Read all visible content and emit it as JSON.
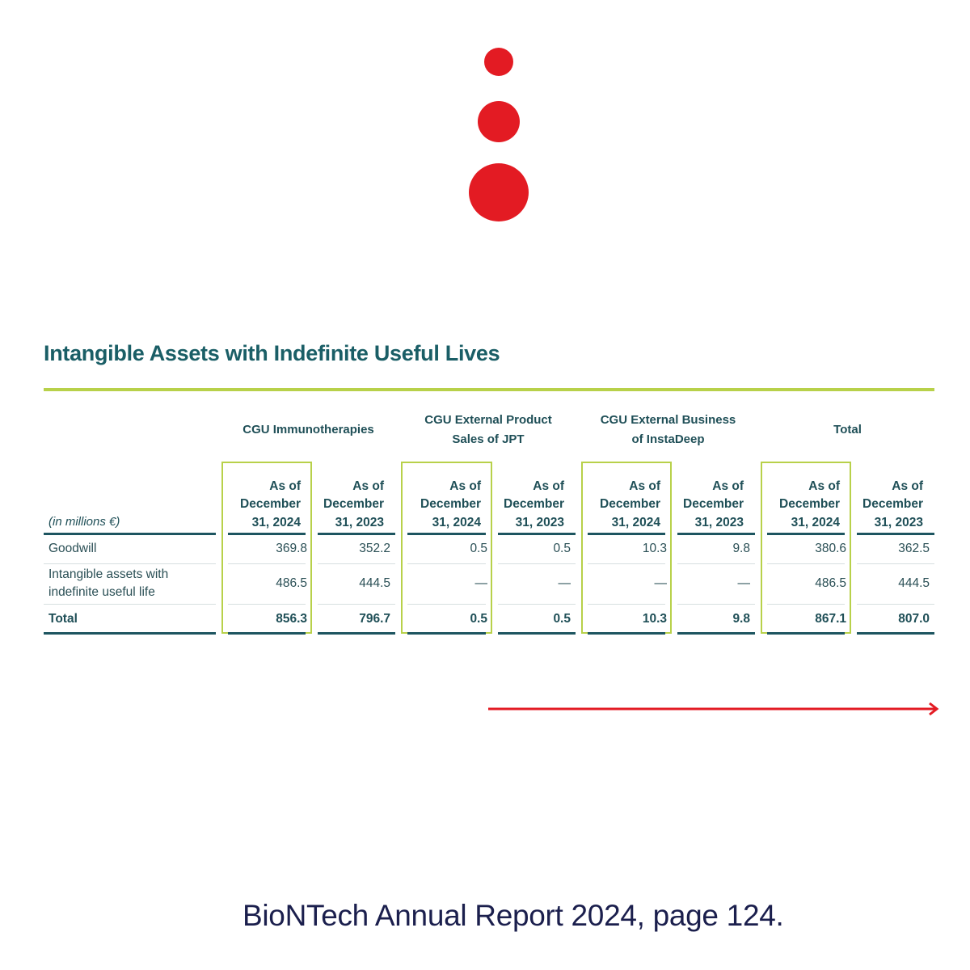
{
  "title": "Intangible Assets with Indefinite Useful Lives",
  "table": {
    "groups": [
      "CGU Immunotherapies",
      "CGU External Product Sales of JPT",
      "CGU External Business of InstaDeep",
      "Total"
    ],
    "unit": "(in millions €)",
    "columns": [
      "As of December 31, 2024",
      "As of December 31, 2023",
      "As of December 31, 2024",
      "As of December 31, 2023",
      "As of December 31, 2024",
      "As of December 31, 2023",
      "As of December 31, 2024",
      "As of December 31, 2023"
    ],
    "rows": [
      {
        "label": "Goodwill",
        "values": [
          "369.8",
          "352.2",
          "0.5",
          "0.5",
          "10.3",
          "9.8",
          "380.6",
          "362.5"
        ]
      },
      {
        "label": "Intangible assets with indefinite useful life",
        "values": [
          "486.5",
          "444.5",
          "—",
          "—",
          "—",
          "—",
          "486.5",
          "444.5"
        ]
      },
      {
        "label": "Total",
        "values": [
          "856.3",
          "796.7",
          "0.5",
          "0.5",
          "10.3",
          "9.8",
          "867.1",
          "807.0"
        ]
      }
    ]
  },
  "caption": "BioNTech Annual Report 2024, page 124."
}
